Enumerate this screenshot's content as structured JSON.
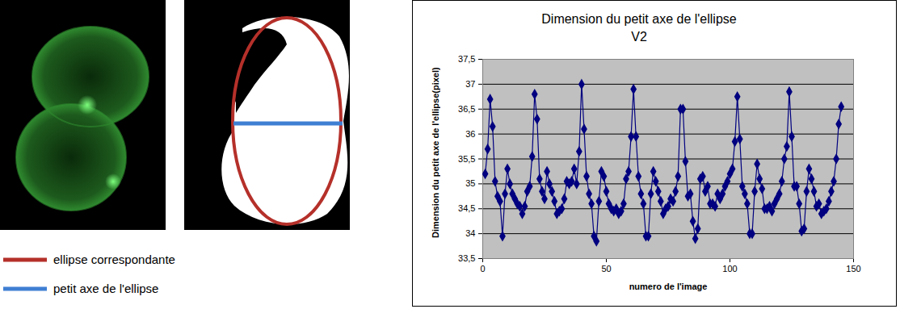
{
  "figure_legend": [
    {
      "label": "ellipse correspondante",
      "color": "#b5302a"
    },
    {
      "label": "petit axe de l'ellipse",
      "color": "#3f7fd3"
    }
  ],
  "chart_data": {
    "type": "line",
    "title": "Dimension du petit axe de l'ellipse",
    "subtitle": "V2",
    "x_label": "numero de l'image",
    "y_label": "Dimension du petit axe de l'ellipse(pixel)",
    "color": "#000080",
    "marker": "diamond",
    "grid": true,
    "xlim": [
      0,
      150
    ],
    "xticks": [
      0,
      50,
      100,
      150
    ],
    "ylim": [
      33.5,
      37.5
    ],
    "yticks": [
      {
        "value": 33.5,
        "label": "33,5"
      },
      34,
      {
        "value": 34.5,
        "label": "34,5"
      },
      35,
      {
        "value": 35.5,
        "label": "35,5"
      },
      36,
      {
        "value": 36.5,
        "label": "36,5"
      },
      37,
      {
        "value": 37.5,
        "label": "37,5"
      }
    ],
    "x": [
      1,
      2,
      3,
      4,
      5,
      6,
      7,
      8,
      9,
      10,
      11,
      12,
      13,
      14,
      15,
      16,
      17,
      18,
      19,
      20,
      21,
      22,
      23,
      24,
      25,
      26,
      27,
      28,
      29,
      30,
      31,
      32,
      33,
      34,
      35,
      36,
      37,
      38,
      39,
      40,
      41,
      42,
      43,
      44,
      45,
      46,
      47,
      48,
      49,
      50,
      51,
      52,
      53,
      54,
      55,
      56,
      57,
      58,
      59,
      60,
      61,
      62,
      63,
      64,
      65,
      66,
      67,
      68,
      69,
      70,
      71,
      72,
      73,
      74,
      75,
      76,
      77,
      78,
      79,
      80,
      81,
      82,
      83,
      84,
      85,
      86,
      87,
      88,
      89,
      90,
      91,
      92,
      93,
      94,
      95,
      96,
      97,
      98,
      99,
      100,
      101,
      102,
      103,
      104,
      105,
      106,
      107,
      108,
      109,
      110,
      111,
      112,
      113,
      114,
      115,
      116,
      117,
      118,
      119,
      120,
      121,
      122,
      123,
      124,
      125,
      126,
      127,
      128,
      129,
      130,
      131,
      132,
      133,
      134,
      135,
      136,
      137,
      138,
      139,
      140,
      141,
      142,
      143,
      144,
      145
    ],
    "values": [
      35.2,
      35.7,
      36.7,
      36.15,
      35.05,
      34.75,
      34.65,
      33.95,
      34.8,
      35.3,
      35.0,
      34.8,
      34.7,
      34.6,
      34.55,
      34.4,
      34.55,
      34.85,
      34.95,
      35.55,
      36.8,
      36.3,
      35.1,
      34.85,
      34.7,
      35.25,
      35.0,
      34.85,
      34.65,
      34.4,
      34.45,
      34.5,
      34.7,
      35.05,
      35.0,
      35.05,
      35.3,
      35.0,
      35.65,
      37.0,
      36.1,
      35.15,
      34.8,
      34.6,
      33.95,
      33.85,
      34.65,
      35.25,
      35.15,
      34.85,
      34.6,
      34.5,
      34.45,
      34.5,
      34.4,
      34.45,
      34.6,
      35.1,
      35.25,
      35.95,
      36.9,
      35.95,
      35.15,
      34.8,
      34.6,
      33.95,
      33.95,
      34.8,
      35.25,
      35.05,
      34.85,
      34.65,
      34.4,
      34.5,
      34.55,
      34.7,
      34.65,
      34.85,
      35.15,
      36.5,
      36.5,
      35.45,
      34.75,
      34.8,
      34.25,
      33.9,
      34.1,
      35.1,
      35.15,
      34.85,
      34.95,
      34.6,
      34.6,
      34.55,
      34.8,
      34.7,
      34.8,
      34.95,
      35.05,
      35.2,
      35.3,
      35.85,
      36.75,
      35.9,
      34.95,
      34.8,
      34.6,
      34.0,
      34.0,
      34.85,
      35.4,
      35.1,
      34.9,
      34.5,
      34.5,
      34.55,
      34.45,
      34.6,
      34.7,
      34.8,
      35.05,
      35.5,
      35.75,
      36.85,
      35.95,
      34.95,
      34.95,
      34.6,
      34.05,
      34.1,
      34.85,
      35.3,
      35.1,
      34.85,
      34.55,
      34.6,
      34.4,
      34.45,
      34.5,
      34.65,
      34.85,
      35.05,
      35.5,
      36.2,
      36.55
    ]
  }
}
